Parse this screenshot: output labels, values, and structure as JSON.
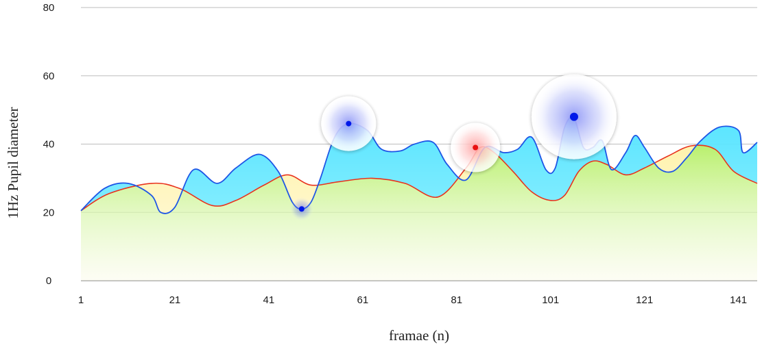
{
  "chart_data": {
    "type": "area",
    "title": "",
    "xlabel": "framae (n)",
    "ylabel": "1Hz Pupil diameter",
    "xlim": [
      1,
      145
    ],
    "ylim": [
      0,
      80
    ],
    "x_ticks": [
      1,
      21,
      41,
      61,
      81,
      101,
      121,
      141
    ],
    "x_tick_labels": [
      "1",
      "21",
      "41",
      "61",
      "81",
      "101",
      "121",
      "141"
    ],
    "y_ticks": [
      0,
      20,
      40,
      60,
      80
    ],
    "y_tick_labels": [
      "0",
      "20",
      "40",
      "60",
      "80"
    ],
    "grid": true,
    "series": [
      {
        "color": "#1e56e6",
        "fill": "#5ce8ff",
        "points": [
          [
            1,
            20.5
          ],
          [
            6,
            27
          ],
          [
            11,
            28.5
          ],
          [
            16,
            25
          ],
          [
            18,
            20
          ],
          [
            21,
            21.5
          ],
          [
            25,
            32.5
          ],
          [
            30,
            28.5
          ],
          [
            34,
            33
          ],
          [
            39,
            37
          ],
          [
            43,
            32
          ],
          [
            46,
            23
          ],
          [
            48,
            21
          ],
          [
            50,
            23
          ],
          [
            52,
            30
          ],
          [
            55,
            42
          ],
          [
            58,
            46
          ],
          [
            62,
            44
          ],
          [
            65,
            38.5
          ],
          [
            69,
            38
          ],
          [
            72,
            40
          ],
          [
            76,
            40.5
          ],
          [
            79,
            34
          ],
          [
            83,
            29.5
          ],
          [
            87,
            39
          ],
          [
            91,
            37.5
          ],
          [
            94,
            38.5
          ],
          [
            97,
            42
          ],
          [
            100,
            32.5
          ],
          [
            102,
            33
          ],
          [
            104,
            45
          ],
          [
            106,
            47.5
          ],
          [
            108,
            39
          ],
          [
            110,
            39
          ],
          [
            112,
            41
          ],
          [
            114,
            32.5
          ],
          [
            117,
            37.5
          ],
          [
            119,
            42.5
          ],
          [
            121,
            39
          ],
          [
            124,
            33
          ],
          [
            127,
            32
          ],
          [
            130,
            36
          ],
          [
            133,
            41
          ],
          [
            137,
            45
          ],
          [
            141,
            44
          ],
          [
            142,
            37.5
          ],
          [
            145,
            40.5
          ]
        ],
        "markers": [
          [
            48,
            21
          ],
          [
            58,
            46
          ],
          [
            106,
            48
          ]
        ]
      },
      {
        "color": "#e8321e",
        "fill": "#bff07a",
        "points": [
          [
            1,
            20.5
          ],
          [
            7,
            25.5
          ],
          [
            16,
            28.5
          ],
          [
            22,
            27
          ],
          [
            29,
            22
          ],
          [
            34,
            23.5
          ],
          [
            40,
            28
          ],
          [
            45,
            31
          ],
          [
            50,
            28
          ],
          [
            56,
            29
          ],
          [
            63,
            30
          ],
          [
            70,
            28.5
          ],
          [
            77,
            24.5
          ],
          [
            83,
            33
          ],
          [
            86,
            39
          ],
          [
            89,
            37.5
          ],
          [
            93,
            32
          ],
          [
            97,
            26
          ],
          [
            101,
            23.5
          ],
          [
            104,
            25
          ],
          [
            107,
            32
          ],
          [
            110,
            35
          ],
          [
            113,
            34
          ],
          [
            117,
            31
          ],
          [
            121,
            33
          ],
          [
            126,
            36.5
          ],
          [
            131,
            39.5
          ],
          [
            136,
            38.5
          ],
          [
            140,
            32
          ],
          [
            145,
            28.5
          ]
        ],
        "markers": [
          [
            85,
            39
          ]
        ]
      }
    ]
  }
}
